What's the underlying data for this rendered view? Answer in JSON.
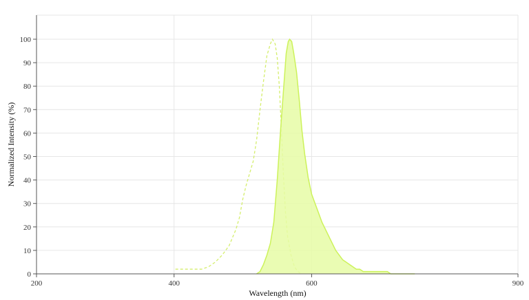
{
  "chart_data": {
    "type": "area",
    "title": "",
    "xlabel": "Wavelength (nm)",
    "ylabel": "Normalized Intensity (%)",
    "xlim": [
      200,
      900
    ],
    "ylim": [
      0,
      100
    ],
    "x_ticks": [
      200,
      400,
      600,
      900
    ],
    "y_ticks": [
      0,
      10,
      20,
      30,
      40,
      50,
      60,
      70,
      80,
      90,
      100
    ],
    "grid": true,
    "legend": "none",
    "series": [
      {
        "style": "dashed-line",
        "color": "#d4ee6c",
        "points": [
          [
            402,
            2
          ],
          [
            420,
            2
          ],
          [
            440,
            2
          ],
          [
            450,
            3
          ],
          [
            460,
            5
          ],
          [
            470,
            8
          ],
          [
            480,
            12
          ],
          [
            490,
            19
          ],
          [
            495,
            24
          ],
          [
            500,
            32
          ],
          [
            505,
            38
          ],
          [
            510,
            43
          ],
          [
            515,
            48
          ],
          [
            520,
            57
          ],
          [
            525,
            70
          ],
          [
            530,
            82
          ],
          [
            535,
            93
          ],
          [
            540,
            98
          ],
          [
            543,
            100
          ],
          [
            547,
            98
          ],
          [
            550,
            92
          ],
          [
            553,
            80
          ],
          [
            556,
            62
          ],
          [
            559,
            42
          ],
          [
            562,
            26
          ],
          [
            565,
            16
          ],
          [
            570,
            8
          ],
          [
            575,
            3
          ],
          [
            580,
            1
          ],
          [
            585,
            0
          ]
        ]
      },
      {
        "style": "filled-area",
        "color": "#ccf25a",
        "fill": "#e6fba6",
        "points": [
          [
            520,
            0
          ],
          [
            525,
            1
          ],
          [
            530,
            4
          ],
          [
            535,
            8
          ],
          [
            540,
            13
          ],
          [
            545,
            22
          ],
          [
            550,
            40
          ],
          [
            555,
            62
          ],
          [
            560,
            82
          ],
          [
            563,
            94
          ],
          [
            566,
            99
          ],
          [
            568,
            100
          ],
          [
            571,
            99
          ],
          [
            574,
            94
          ],
          [
            578,
            86
          ],
          [
            582,
            74
          ],
          [
            586,
            61
          ],
          [
            590,
            51
          ],
          [
            595,
            41
          ],
          [
            600,
            34
          ],
          [
            605,
            30
          ],
          [
            610,
            26
          ],
          [
            615,
            22
          ],
          [
            620,
            19
          ],
          [
            625,
            16
          ],
          [
            630,
            13
          ],
          [
            635,
            10
          ],
          [
            640,
            8
          ],
          [
            645,
            6
          ],
          [
            650,
            5
          ],
          [
            655,
            4
          ],
          [
            660,
            3
          ],
          [
            665,
            2
          ],
          [
            670,
            2
          ],
          [
            675,
            1
          ],
          [
            680,
            1
          ],
          [
            690,
            1
          ],
          [
            700,
            1
          ],
          [
            710,
            1
          ],
          [
            715,
            0
          ],
          [
            750,
            0
          ]
        ]
      }
    ]
  }
}
